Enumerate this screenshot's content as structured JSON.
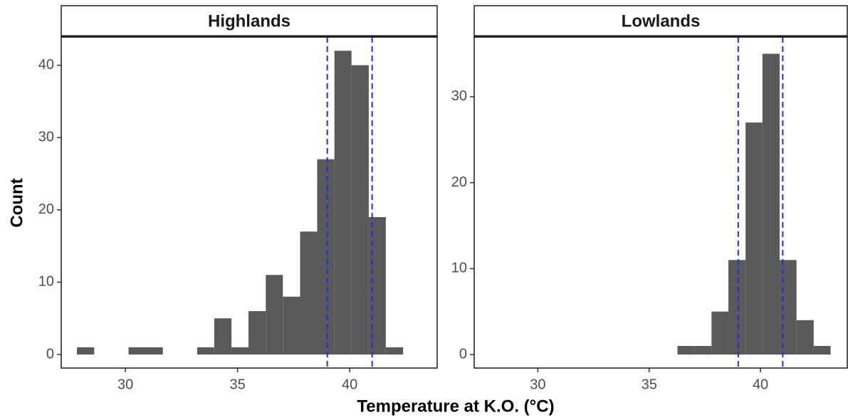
{
  "x_label": "Temperature at K.O. (°C)",
  "y_label": "Count",
  "chart_data": [
    {
      "type": "histogram",
      "title": "Highlands",
      "color": "#595959",
      "bins": [
        27.84,
        28.61,
        29.37,
        30.14,
        30.9,
        31.67,
        32.43,
        33.2,
        33.96,
        34.73,
        35.49,
        36.26,
        37.02,
        37.79,
        38.55,
        39.32,
        40.08,
        40.85,
        41.61,
        42.38
      ],
      "counts": [
        1,
        0,
        0,
        1,
        1,
        0,
        0,
        1,
        5,
        1,
        6,
        11,
        8,
        17,
        27,
        42,
        40,
        19,
        1
      ],
      "xlim": [
        27.14,
        43.9
      ],
      "xticks": [
        30,
        35,
        40
      ],
      "ylim": [
        -1.87,
        43.9
      ],
      "yticks": [
        0,
        10,
        20,
        30,
        40
      ],
      "vlines": [
        39,
        41
      ],
      "vline_color": "#1f2fe0"
    },
    {
      "type": "histogram",
      "title": "Lowlands",
      "color": "#595959",
      "bins": [
        36.27,
        37.03,
        37.8,
        38.56,
        39.33,
        40.09,
        40.86,
        41.62,
        42.39,
        43.15
      ],
      "counts": [
        1,
        1,
        5,
        11,
        27,
        35,
        11,
        4,
        1
      ],
      "xlim": [
        27.14,
        43.9
      ],
      "xticks": [
        30,
        35,
        40
      ],
      "ylim": [
        -1.57,
        36.95
      ],
      "yticks": [
        0,
        10,
        20,
        30
      ],
      "vlines": [
        39,
        41
      ],
      "vline_color": "#1f2fe0"
    }
  ]
}
